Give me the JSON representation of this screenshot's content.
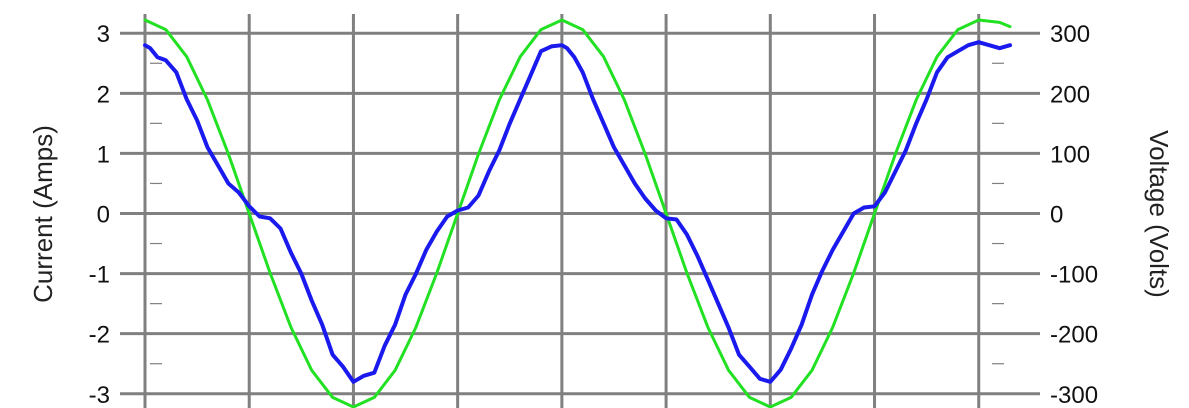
{
  "chart_data": {
    "type": "line",
    "xlabel": "",
    "ylabel": "Current (Amps)",
    "y2label": "Voltage (Volts)",
    "ylim": [
      -3.22,
      3.22
    ],
    "y2lim": [
      -322,
      322
    ],
    "xlim": [
      0,
      8.3
    ],
    "grid": true,
    "legend": "none",
    "y_ticks": [
      "3",
      "2",
      "1",
      "0",
      "-1",
      "-2",
      "-3"
    ],
    "y_tick_values": [
      3,
      2,
      1,
      0,
      -1,
      -2,
      -3
    ],
    "y2_ticks": [
      "300",
      "200",
      "100",
      "0",
      "-100",
      "-200",
      "-300"
    ],
    "y2_tick_values": [
      300,
      200,
      100,
      0,
      -100,
      -200,
      -300
    ],
    "series": [
      {
        "axis": "right",
        "color": "#22e022",
        "x": [
          0,
          0.2,
          0.4,
          0.6,
          0.8,
          1.0,
          1.2,
          1.4,
          1.6,
          1.8,
          2.0,
          2.2,
          2.4,
          2.6,
          2.8,
          3.0,
          3.2,
          3.4,
          3.6,
          3.8,
          4.0,
          4.2,
          4.4,
          4.6,
          4.8,
          5.0,
          5.2,
          5.4,
          5.6,
          5.8,
          6.0,
          6.2,
          6.4,
          6.6,
          6.8,
          7.0,
          7.2,
          7.4,
          7.6,
          7.8,
          8.0,
          8.2,
          8.3
        ],
        "values": [
          322,
          306,
          261,
          189,
          99,
          0,
          -99,
          -189,
          -261,
          -306,
          -322,
          -306,
          -261,
          -189,
          -99,
          0,
          99,
          189,
          261,
          306,
          322,
          306,
          261,
          189,
          99,
          0,
          -99,
          -189,
          -261,
          -306,
          -322,
          -306,
          -261,
          -189,
          -99,
          0,
          99,
          189,
          261,
          306,
          322,
          318,
          311
        ]
      },
      {
        "axis": "left",
        "color": "#1a1aee",
        "x": [
          0,
          0.05,
          0.12,
          0.2,
          0.3,
          0.4,
          0.5,
          0.6,
          0.7,
          0.8,
          0.9,
          1.0,
          1.1,
          1.2,
          1.3,
          1.4,
          1.5,
          1.6,
          1.7,
          1.8,
          1.9,
          2.0,
          2.05,
          2.1,
          2.2,
          2.3,
          2.4,
          2.5,
          2.6,
          2.7,
          2.8,
          2.9,
          3.0,
          3.1,
          3.2,
          3.3,
          3.4,
          3.5,
          3.6,
          3.7,
          3.8,
          3.9,
          4.0,
          4.05,
          4.12,
          4.2,
          4.3,
          4.4,
          4.5,
          4.6,
          4.7,
          4.8,
          4.9,
          5.0,
          5.1,
          5.2,
          5.3,
          5.4,
          5.5,
          5.6,
          5.7,
          5.8,
          5.9,
          6.0,
          6.05,
          6.1,
          6.2,
          6.3,
          6.4,
          6.5,
          6.6,
          6.7,
          6.8,
          6.9,
          7.0,
          7.1,
          7.2,
          7.3,
          7.4,
          7.5,
          7.6,
          7.7,
          7.8,
          7.9,
          8.0,
          8.1,
          8.2,
          8.3
        ],
        "values": [
          2.8,
          2.75,
          2.6,
          2.55,
          2.35,
          1.9,
          1.55,
          1.1,
          0.8,
          0.5,
          0.35,
          0.12,
          -0.05,
          -0.08,
          -0.25,
          -0.65,
          -1.0,
          -1.45,
          -1.85,
          -2.35,
          -2.55,
          -2.8,
          -2.75,
          -2.7,
          -2.65,
          -2.2,
          -1.85,
          -1.35,
          -1.0,
          -0.6,
          -0.3,
          -0.05,
          0.05,
          0.1,
          0.3,
          0.7,
          1.05,
          1.5,
          1.9,
          2.3,
          2.7,
          2.78,
          2.8,
          2.75,
          2.6,
          2.35,
          1.9,
          1.5,
          1.1,
          0.8,
          0.5,
          0.25,
          0.05,
          -0.08,
          -0.1,
          -0.35,
          -0.7,
          -1.1,
          -1.5,
          -1.9,
          -2.35,
          -2.55,
          -2.75,
          -2.8,
          -2.7,
          -2.6,
          -2.25,
          -1.85,
          -1.35,
          -0.95,
          -0.6,
          -0.3,
          0.0,
          0.1,
          0.12,
          0.35,
          0.7,
          1.05,
          1.5,
          1.9,
          2.35,
          2.6,
          2.7,
          2.8,
          2.85,
          2.8,
          2.75,
          2.8
        ]
      }
    ]
  }
}
